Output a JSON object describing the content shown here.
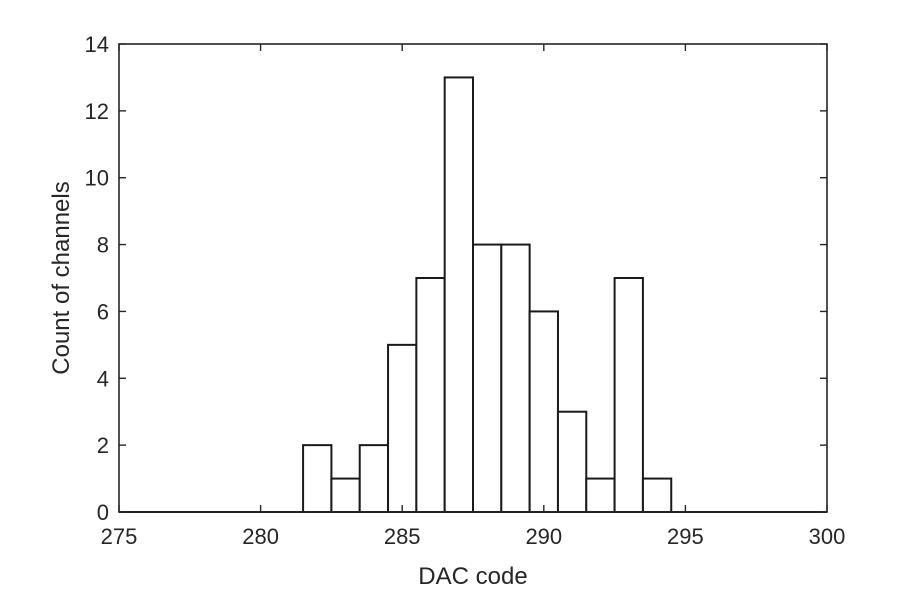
{
  "chart_data": {
    "type": "bar",
    "xlabel": "DAC code",
    "ylabel": "Count of channels",
    "xlim": [
      275,
      300
    ],
    "ylim": [
      0,
      14
    ],
    "xticks": [
      275,
      280,
      285,
      290,
      295,
      300
    ],
    "yticks": [
      0,
      2,
      4,
      6,
      8,
      10,
      12,
      14
    ],
    "bin_width": 1,
    "bars": [
      {
        "x": 282,
        "value": 2
      },
      {
        "x": 283,
        "value": 1
      },
      {
        "x": 284,
        "value": 2
      },
      {
        "x": 285,
        "value": 5
      },
      {
        "x": 286,
        "value": 7
      },
      {
        "x": 287,
        "value": 13
      },
      {
        "x": 288,
        "value": 8
      },
      {
        "x": 289,
        "value": 8
      },
      {
        "x": 290,
        "value": 6
      },
      {
        "x": 291,
        "value": 3
      },
      {
        "x": 292,
        "value": 1
      },
      {
        "x": 293,
        "value": 7
      },
      {
        "x": 294,
        "value": 1
      }
    ],
    "grid": false,
    "box": true,
    "bar_fill": "#ffffff",
    "bar_edge": "#1a1a1a"
  }
}
